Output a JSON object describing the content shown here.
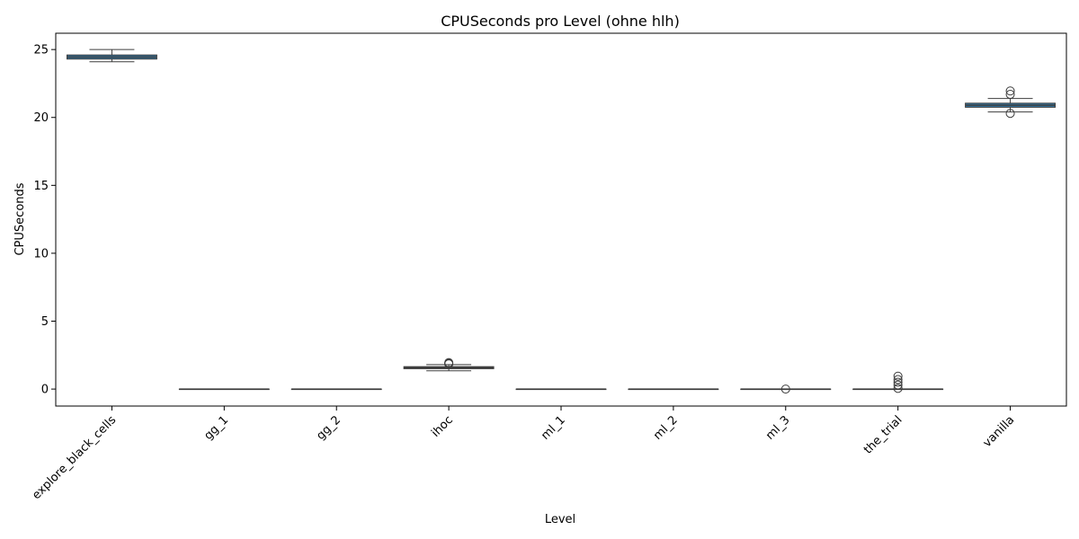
{
  "chart_data": {
    "type": "box",
    "title": "CPUSeconds pro Level (ohne hlh)",
    "xlabel": "Level",
    "ylabel": "CPUSeconds",
    "ylim": [
      -1.25,
      26.2
    ],
    "yticks": [
      0,
      5,
      10,
      15,
      20,
      25
    ],
    "box_color": "#3274a1",
    "line_color": "#3d3d3d",
    "categories": [
      "explore_black_cells",
      "gg_1",
      "gg_2",
      "ihoc",
      "ml_1",
      "ml_2",
      "ml_3",
      "the_trial",
      "vanilla"
    ],
    "boxes": [
      {
        "whisker_low": 24.1,
        "q1": 24.3,
        "median": 24.45,
        "q3": 24.6,
        "whisker_high": 25.0,
        "outliers": []
      },
      {
        "whisker_low": 0.0,
        "q1": 0.0,
        "median": 0.0,
        "q3": 0.0,
        "whisker_high": 0.0,
        "outliers": []
      },
      {
        "whisker_low": 0.0,
        "q1": 0.0,
        "median": 0.0,
        "q3": 0.0,
        "whisker_high": 0.0,
        "outliers": []
      },
      {
        "whisker_low": 1.35,
        "q1": 1.5,
        "median": 1.58,
        "q3": 1.65,
        "whisker_high": 1.8,
        "outliers": [
          1.85,
          1.9,
          1.95
        ]
      },
      {
        "whisker_low": 0.0,
        "q1": 0.0,
        "median": 0.0,
        "q3": 0.0,
        "whisker_high": 0.0,
        "outliers": []
      },
      {
        "whisker_low": 0.0,
        "q1": 0.0,
        "median": 0.0,
        "q3": 0.0,
        "whisker_high": 0.0,
        "outliers": []
      },
      {
        "whisker_low": 0.0,
        "q1": 0.0,
        "median": 0.0,
        "q3": 0.0,
        "whisker_high": 0.0,
        "outliers": [
          0.0
        ]
      },
      {
        "whisker_low": 0.0,
        "q1": 0.0,
        "median": 0.0,
        "q3": 0.0,
        "whisker_high": 0.0,
        "outliers": [
          0.05,
          0.3,
          0.5,
          0.7,
          0.95
        ]
      },
      {
        "whisker_low": 20.4,
        "q1": 20.75,
        "median": 20.9,
        "q3": 21.05,
        "whisker_high": 21.4,
        "outliers": [
          20.3,
          21.7,
          21.95
        ]
      }
    ]
  }
}
